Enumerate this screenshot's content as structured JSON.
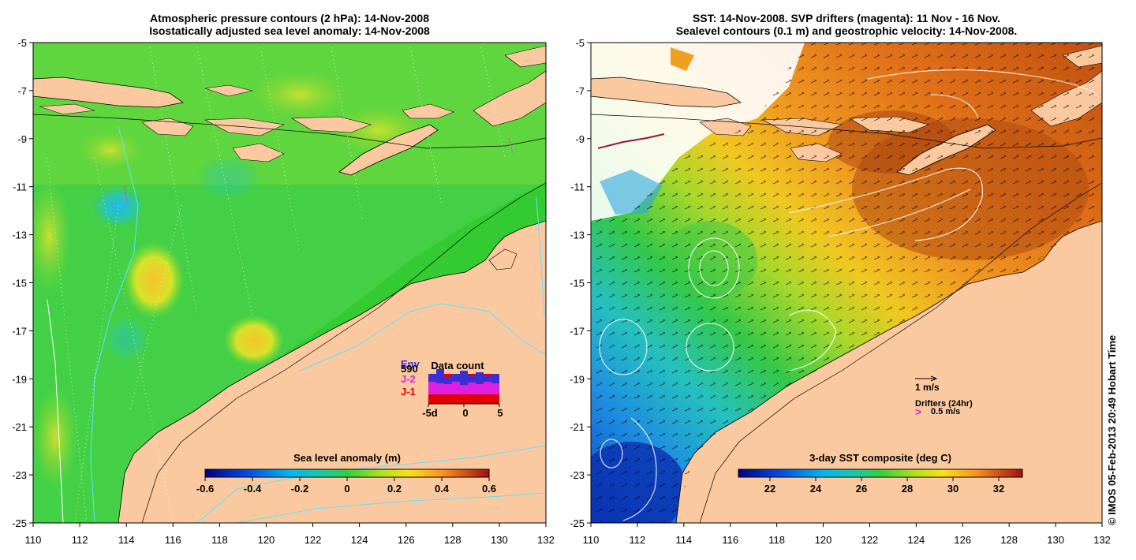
{
  "left_panel": {
    "title_line1": "Atmospheric pressure contours (2 hPa): 14-Nov-2008",
    "title_line2": "Isostatically adjusted sea level anomaly: 14-Nov-2008",
    "colorbar": {
      "label": "Sea level anomaly (m)",
      "ticks": [
        "-0.6",
        "-0.4",
        "-0.2",
        "0",
        "0.2",
        "0.4",
        "0.6"
      ]
    },
    "data_count": {
      "title": "Data count",
      "legend": [
        {
          "label": "Env",
          "color": "#3a2fd4"
        },
        {
          "label": "590",
          "color": "#000000"
        },
        {
          "label": "J-2",
          "color": "#e020e0"
        },
        {
          "label": "J-1",
          "color": "#e00000"
        }
      ],
      "x_ticks": [
        "-5d",
        "0",
        "5"
      ]
    }
  },
  "right_panel": {
    "title_line1": "SST: 14-Nov-2008. SVP drifters (magenta): 11 Nov - 16 Nov.",
    "title_line2": "Sealevel contours (0.1 m) and geostrophic velocity: 14-Nov-2008.",
    "colorbar": {
      "label": "3-day SST composite (deg C)",
      "ticks": [
        "22",
        "24",
        "26",
        "28",
        "30",
        "32"
      ]
    },
    "velocity_legend": "1 m/s",
    "drifters_legend": "Drifters (24hr)",
    "drifter_speed": "0.5 m/s"
  },
  "axes": {
    "y_ticks": [
      "-5",
      "-7",
      "-9",
      "-11",
      "-13",
      "-15",
      "-17",
      "-19",
      "-21",
      "-23",
      "-25"
    ],
    "x_ticks": [
      "110",
      "112",
      "114",
      "116",
      "118",
      "120",
      "122",
      "124",
      "126",
      "128",
      "130",
      "132"
    ]
  },
  "credit": "© IMOS 05-Feb-2013 20:49 Hobart Time",
  "colors": {
    "land": "#fbc9a0",
    "ocean_shallow": "#f0d080"
  }
}
